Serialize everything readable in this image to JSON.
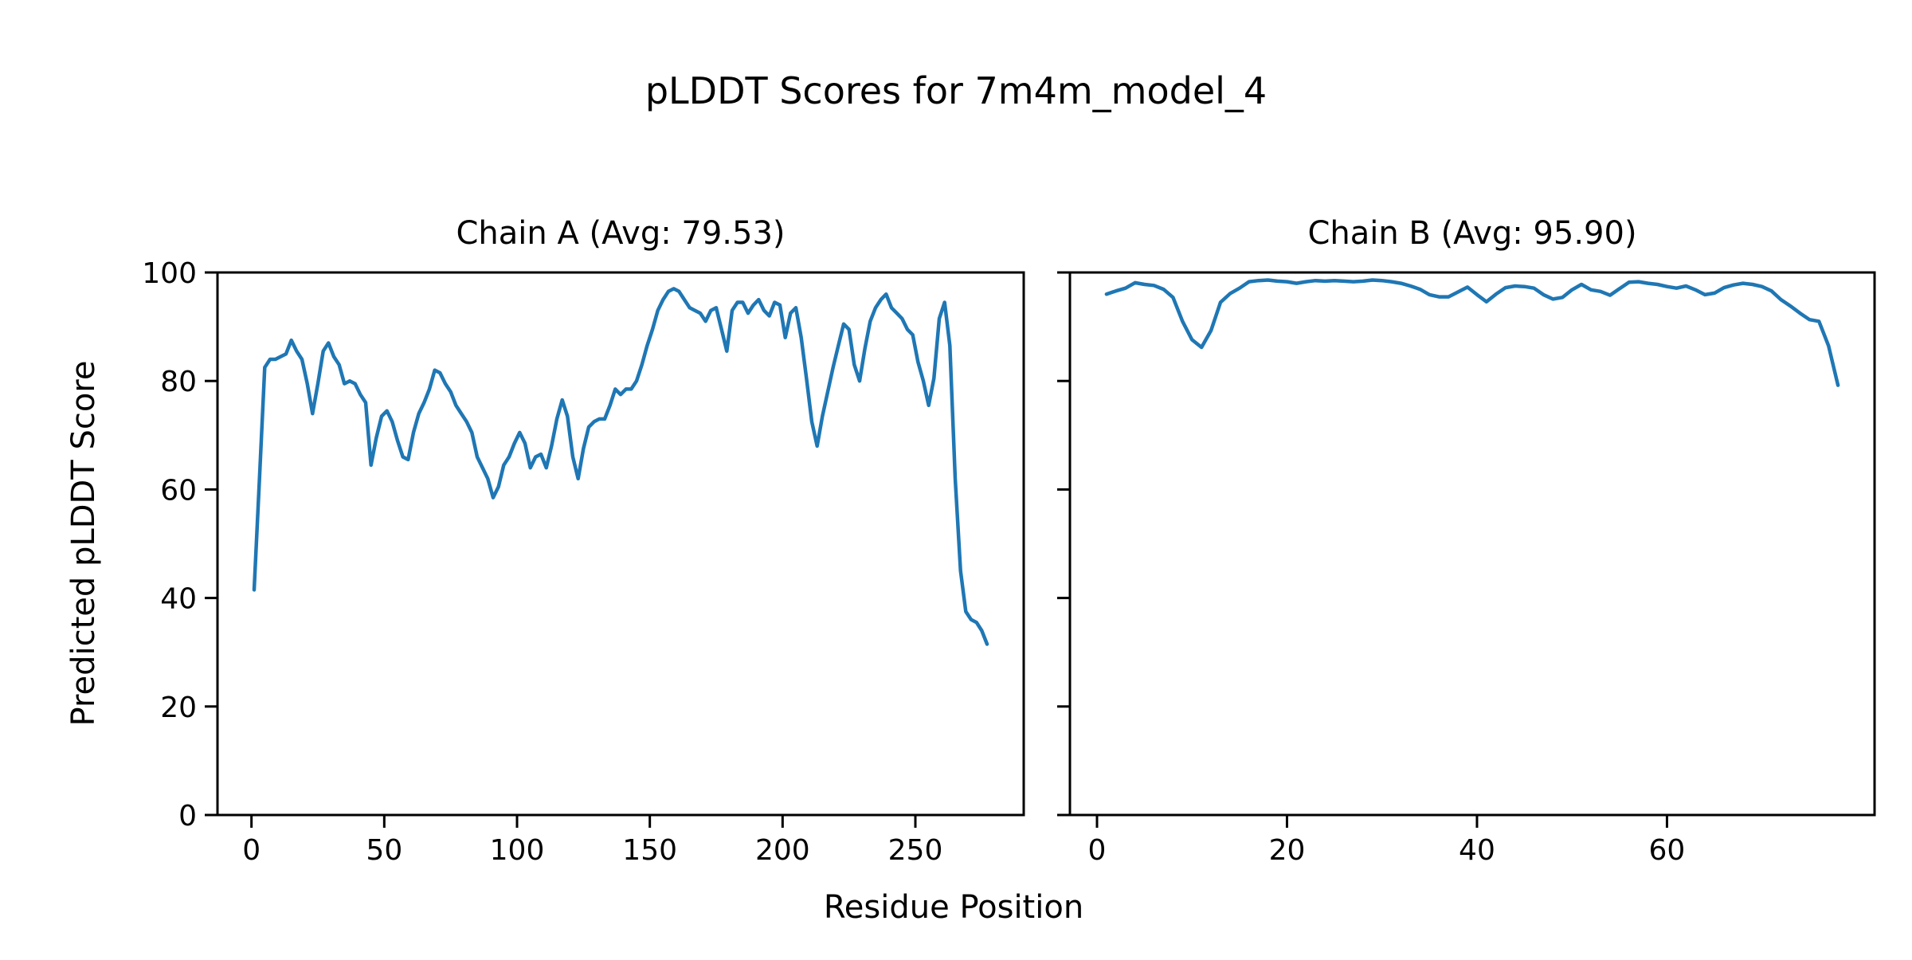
{
  "figure": {
    "title": "pLDDT Scores for 7m4m_model_4",
    "xlabel": "Residue Position",
    "ylabel": "Predicted pLDDT Score",
    "line_color": "#1f77b4",
    "axis_color": "#000000",
    "background_color": "#ffffff"
  },
  "chart_data": [
    {
      "type": "line",
      "title": "Chain A (Avg: 79.53)",
      "chain": "A",
      "avg_label": 79.53,
      "xlabel": "Residue Position",
      "ylabel": "Predicted pLDDT Score",
      "xlim": [
        -12.8,
        290.8
      ],
      "ylim": [
        0,
        100
      ],
      "xticks": [
        0,
        50,
        100,
        150,
        200,
        250
      ],
      "yticks": [
        0,
        20,
        40,
        60,
        80,
        100
      ],
      "show_ytick_labels": true,
      "grid": false,
      "legend": "none",
      "x_start": 1,
      "x_step": 2,
      "values": [
        41.5,
        62,
        82.5,
        84,
        84,
        84.5,
        85,
        87.5,
        85.5,
        84,
        79.5,
        74,
        79.5,
        85.5,
        87,
        84.5,
        83,
        79.5,
        80,
        79.5,
        77.5,
        76,
        64.5,
        69.5,
        73.5,
        74.5,
        72.5,
        69,
        66,
        65.5,
        70.5,
        74,
        76,
        78.5,
        82,
        81.5,
        79.5,
        78,
        75.5,
        74,
        72.5,
        70.5,
        66,
        64,
        62,
        58.5,
        60.5,
        64.5,
        66,
        68.5,
        70.5,
        68.5,
        64,
        66,
        66.5,
        64,
        68,
        73,
        76.5,
        73.5,
        66,
        62,
        67.5,
        71.5,
        72.5,
        73,
        73,
        75.5,
        78.5,
        77.5,
        78.5,
        78.5,
        80,
        83,
        86.5,
        89.5,
        93,
        95,
        96.5,
        97,
        96.5,
        95,
        93.5,
        93,
        92.5,
        91,
        93,
        93.5,
        89.5,
        85.5,
        93,
        94.5,
        94.5,
        92.5,
        94,
        95,
        93,
        92,
        94.5,
        94,
        88,
        92.5,
        93.5,
        88,
        80.5,
        72.5,
        68,
        73.5,
        78,
        82.5,
        86.5,
        90.5,
        89.5,
        83,
        80,
        86,
        91,
        93.5,
        95,
        96,
        93.5,
        92.5,
        91.5,
        89.5,
        88.5,
        83.5,
        80,
        75.5,
        80.5,
        91.5,
        94.5,
        86.5,
        62,
        45,
        37.5,
        36,
        35.5,
        34,
        31.5
      ]
    },
    {
      "type": "line",
      "title": "Chain B (Avg: 95.90)",
      "chain": "B",
      "avg_label": 95.9,
      "xlabel": "Residue Position",
      "ylabel": "Predicted pLDDT Score",
      "xlim": [
        -2.85,
        81.85
      ],
      "ylim": [
        0,
        100
      ],
      "xticks": [
        0,
        20,
        40,
        60
      ],
      "yticks": [
        0,
        20,
        40,
        60,
        80,
        100
      ],
      "show_ytick_labels": false,
      "grid": false,
      "legend": "none",
      "x_start": 1,
      "x_step": 1,
      "values": [
        96,
        96.6,
        97.1,
        98.1,
        97.8,
        97.6,
        96.9,
        95.4,
        91,
        87.6,
        86.2,
        89.3,
        94.5,
        96.1,
        97.1,
        98.3,
        98.5,
        98.6,
        98.4,
        98.3,
        98,
        98.3,
        98.5,
        98.4,
        98.5,
        98.4,
        98.3,
        98.4,
        98.6,
        98.5,
        98.3,
        98,
        97.5,
        96.9,
        95.9,
        95.5,
        95.5,
        96.4,
        97.3,
        95.9,
        94.6,
        96,
        97.2,
        97.5,
        97.4,
        97.1,
        95.9,
        95.1,
        95.4,
        96.8,
        97.8,
        96.8,
        96.5,
        95.8,
        97,
        98.2,
        98.3,
        98,
        97.8,
        97.4,
        97.1,
        97.5,
        96.8,
        95.9,
        96.2,
        97.2,
        97.7,
        98,
        97.8,
        97.4,
        96.6,
        95,
        93.8,
        92.5,
        91.3,
        91,
        86.5,
        79.2
      ]
    }
  ]
}
